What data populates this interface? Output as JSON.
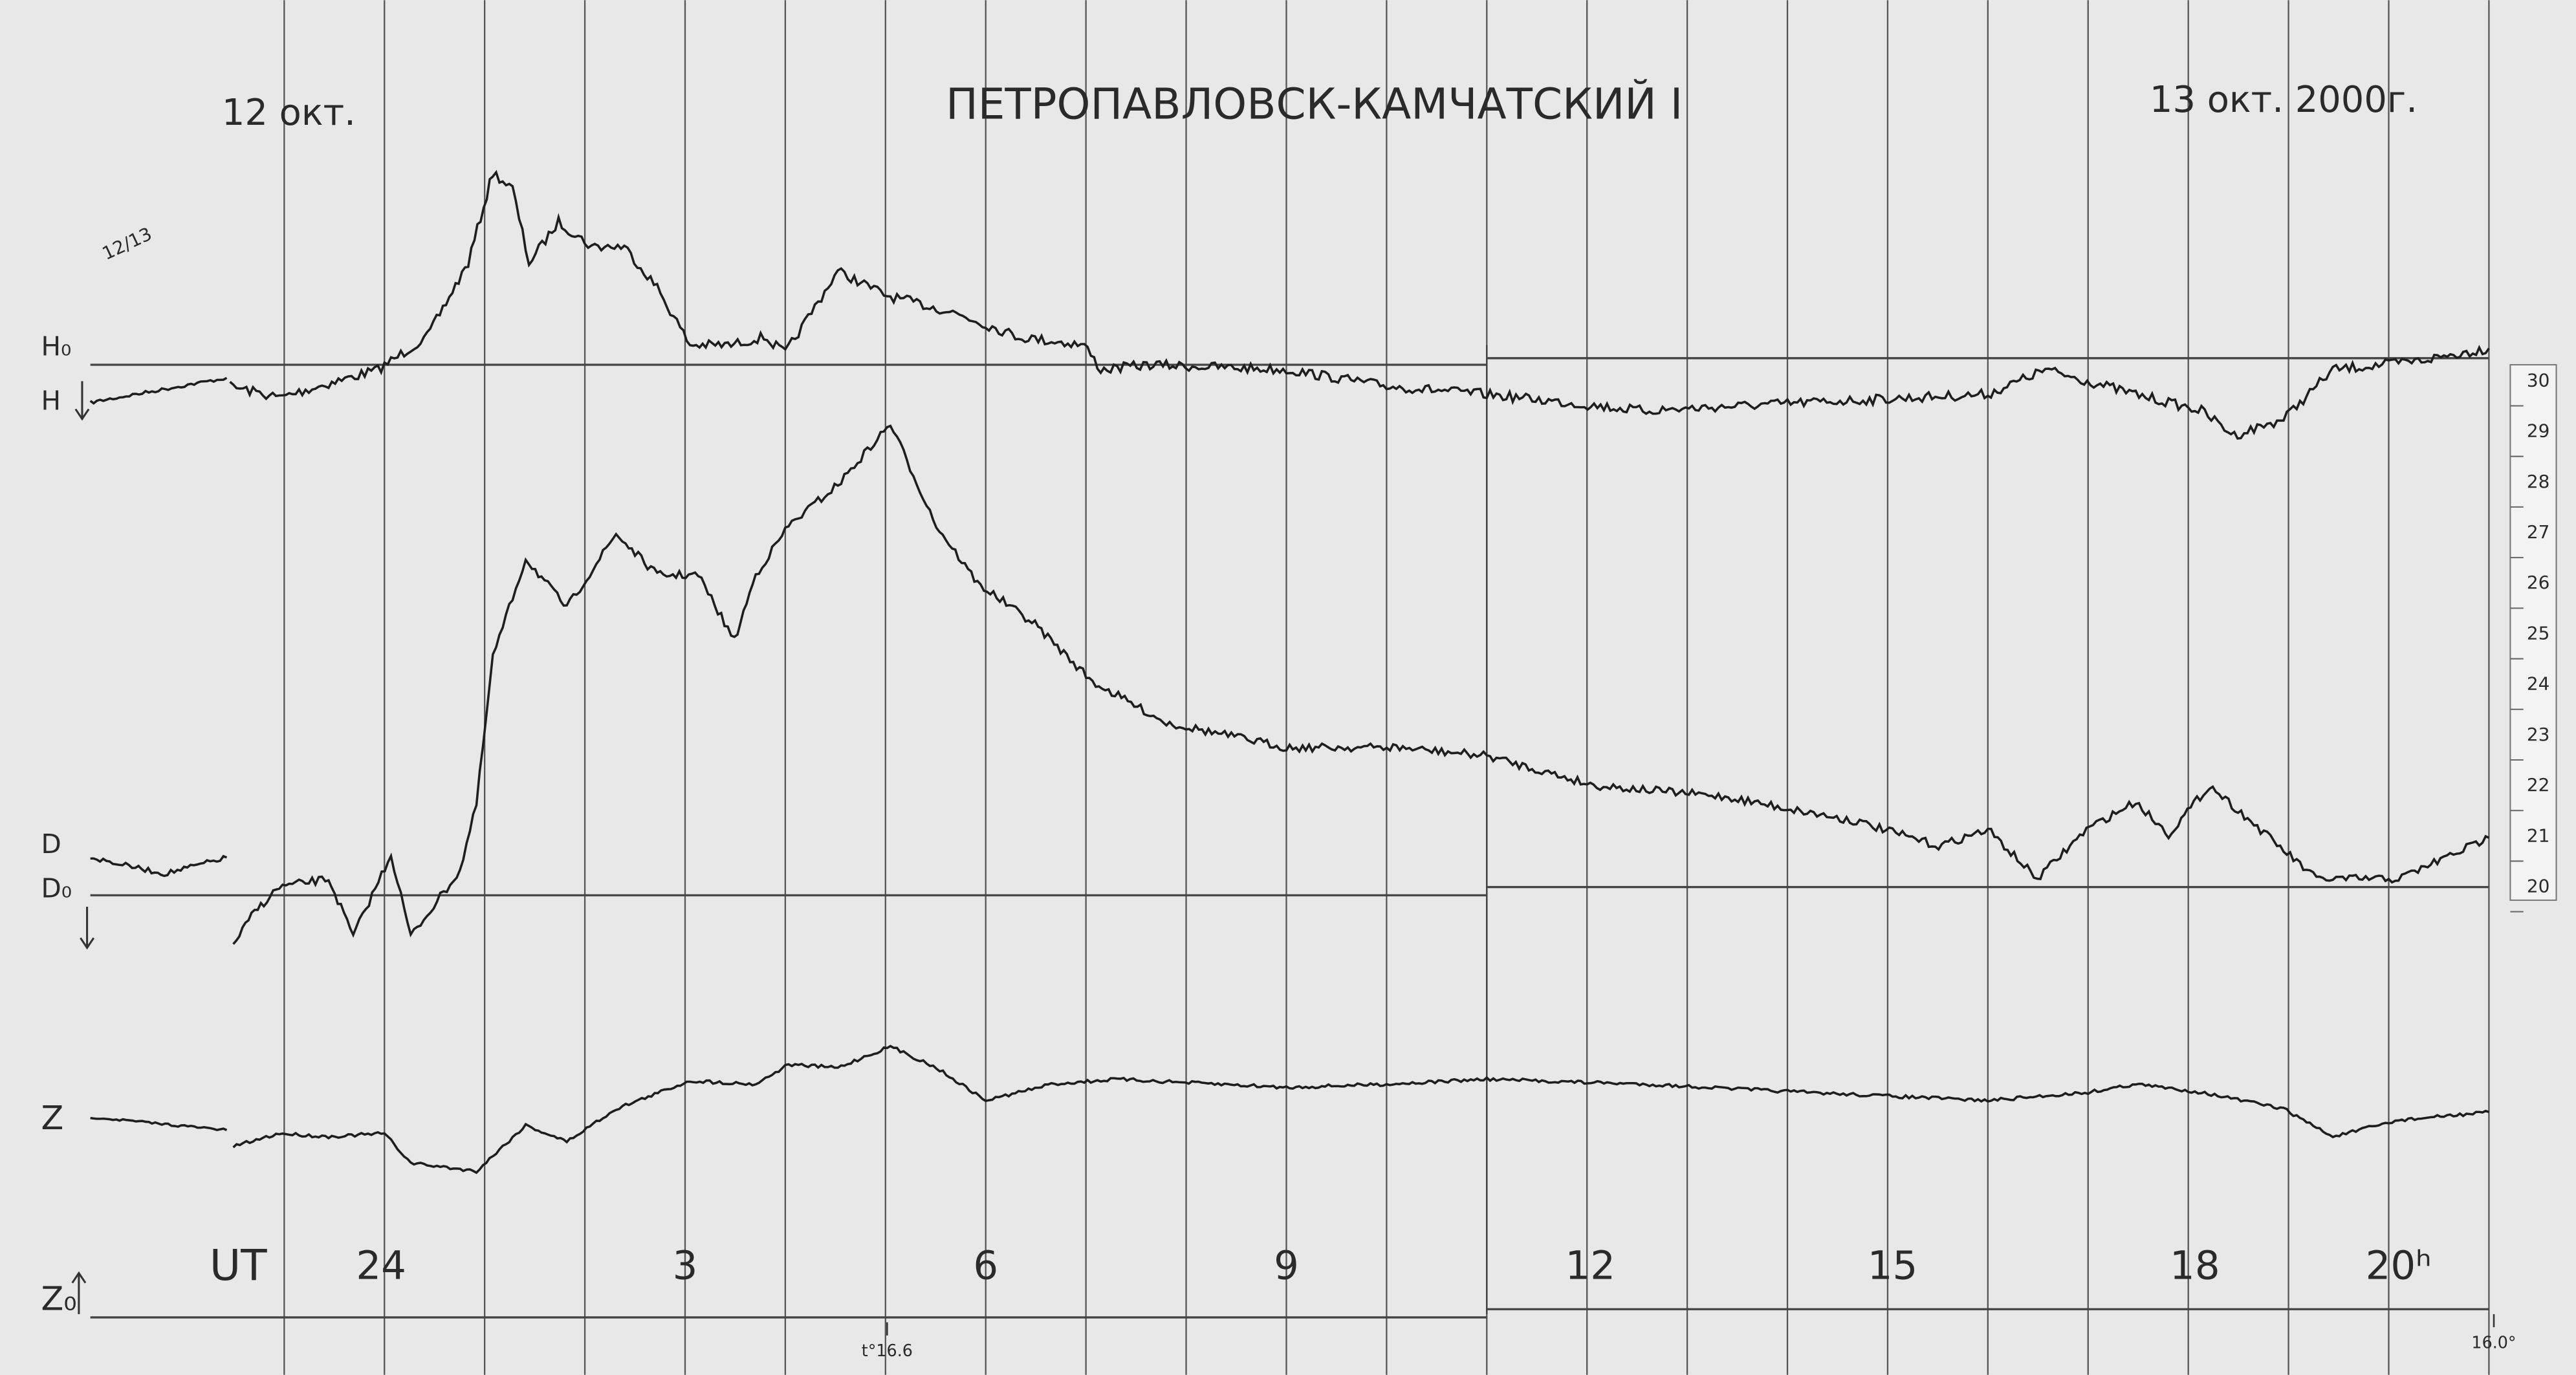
{
  "header": {
    "date_left": "12 окт.",
    "title": "ПЕТРОПАВЛОВСК-КАМЧАТСКИЙ I",
    "date_right": "13 окт. 2000г."
  },
  "margin_note": "12/13",
  "trace_labels": {
    "h0": "H₀",
    "h": "H",
    "d": "D",
    "d0": "D₀",
    "z": "Z",
    "z0": "Z₀"
  },
  "time_axis": {
    "label": "UT",
    "hours": [
      "24",
      "3",
      "6",
      "9",
      "12",
      "15",
      "18",
      "20ʰ"
    ]
  },
  "scale": {
    "values": [
      "30",
      "29",
      "28",
      "27",
      "26",
      "25",
      "24",
      "23",
      "22",
      "21",
      "20"
    ]
  },
  "temperatures": [
    "t°16.6",
    "16.0°"
  ]
}
